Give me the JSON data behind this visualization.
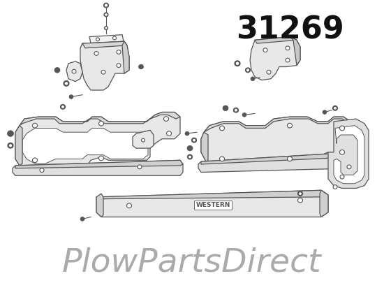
{
  "title_number": "31269",
  "watermark": "PlowPartsDirect",
  "bg_color": "#ffffff",
  "line_color": "#555555",
  "title_color": "#111111",
  "watermark_color": "#aaaaaa",
  "title_fontsize": 32,
  "watermark_fontsize": 34,
  "fig_width": 5.5,
  "fig_height": 4.05,
  "dpi": 100
}
